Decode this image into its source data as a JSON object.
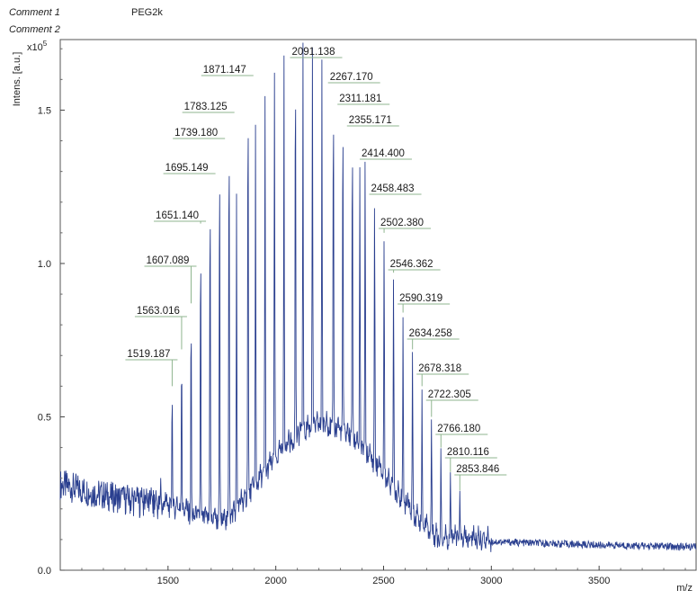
{
  "header": {
    "comment1_label": "Comment 1",
    "comment1_value": "PEG2k",
    "comment2_label": "Comment 2"
  },
  "chart_data": {
    "type": "line",
    "title": "",
    "xlabel": "m/z",
    "ylabel": "Intens. [a.u.]",
    "y_multiplier": "x10",
    "y_exponent": "5",
    "xlim": [
      1000,
      3950
    ],
    "ylim": [
      0,
      1.73
    ],
    "x_ticks": [
      1500,
      2000,
      2500,
      3000,
      3500
    ],
    "y_ticks": [
      0.0,
      0.5,
      1.0,
      1.5
    ],
    "grid": false,
    "line_color": "#2a3f8f",
    "label_line_color": "#8fb58f",
    "peak_spacing": 44,
    "peaks": [
      {
        "mz": 1519.187,
        "label": "1519.187",
        "intensity": 0.6
      },
      {
        "mz": 1563.016,
        "label": "1563.016",
        "intensity": 0.72
      },
      {
        "mz": 1607.089,
        "label": "1607.089",
        "intensity": 0.87
      },
      {
        "mz": 1651.14,
        "label": "1651.140",
        "intensity": 1.13
      },
      {
        "mz": 1695.149,
        "label": "1695.149",
        "intensity": 1.3
      },
      {
        "mz": 1739.18,
        "label": "1739.180",
        "intensity": 1.42
      },
      {
        "mz": 1783.125,
        "label": "1783.125",
        "intensity": 1.52
      },
      {
        "mz": 1871.147,
        "label": "1871.147",
        "intensity": 1.64
      },
      {
        "mz": 2091.138,
        "label": "2091.138",
        "intensity": 1.72
      },
      {
        "mz": 2267.17,
        "label": "2267.170",
        "intensity": 1.6
      },
      {
        "mz": 2311.181,
        "label": "2311.181",
        "intensity": 1.55
      },
      {
        "mz": 2355.171,
        "label": "2355.171",
        "intensity": 1.48
      },
      {
        "mz": 2414.4,
        "label": "2414.400",
        "intensity": 1.37
      },
      {
        "mz": 2458.483,
        "label": "2458.483",
        "intensity": 1.23
      },
      {
        "mz": 2502.38,
        "label": "2502.380",
        "intensity": 1.1
      },
      {
        "mz": 2546.362,
        "label": "2546.362",
        "intensity": 0.97
      },
      {
        "mz": 2590.319,
        "label": "2590.319",
        "intensity": 0.84
      },
      {
        "mz": 2634.258,
        "label": "2634.258",
        "intensity": 0.72
      },
      {
        "mz": 2678.318,
        "label": "2678.318",
        "intensity": 0.6
      },
      {
        "mz": 2722.305,
        "label": "2722.305",
        "intensity": 0.5
      },
      {
        "mz": 2766.18,
        "label": "2766.180",
        "intensity": 0.4
      },
      {
        "mz": 2810.116,
        "label": "2810.116",
        "intensity": 0.32
      },
      {
        "mz": 2853.846,
        "label": "2853.846",
        "intensity": 0.26
      }
    ]
  }
}
